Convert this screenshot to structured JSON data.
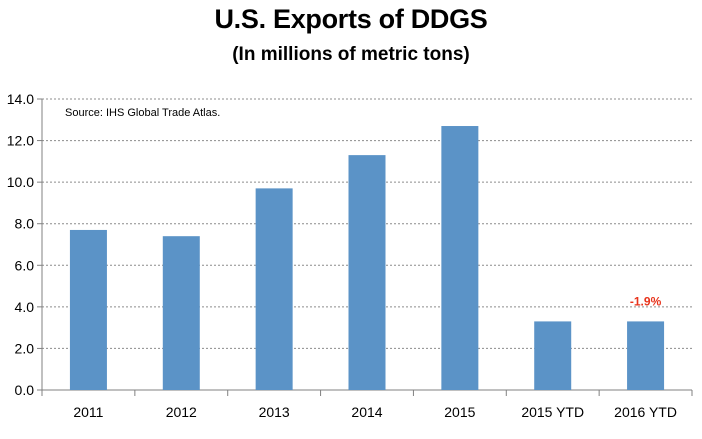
{
  "chart_data": {
    "type": "bar",
    "title": "U.S. Exports of DDGS",
    "subtitle": "(In millions of metric tons)",
    "source_note": "Source: IHS Global Trade Atlas.",
    "categories": [
      "2011",
      "2012",
      "2013",
      "2014",
      "2015",
      "2015 YTD",
      "2016 YTD"
    ],
    "values": [
      7.7,
      7.4,
      9.7,
      11.3,
      12.7,
      3.3,
      3.3
    ],
    "ylim": [
      0,
      14
    ],
    "yticks": [
      "0.0",
      "2.0",
      "4.0",
      "6.0",
      "8.0",
      "10.0",
      "12.0",
      "14.0"
    ],
    "grid": true,
    "bar_color": "#5b93c7",
    "annotations": [
      {
        "category": "2016 YTD",
        "text": "-1.9%",
        "color": "#e8341c"
      }
    ]
  }
}
